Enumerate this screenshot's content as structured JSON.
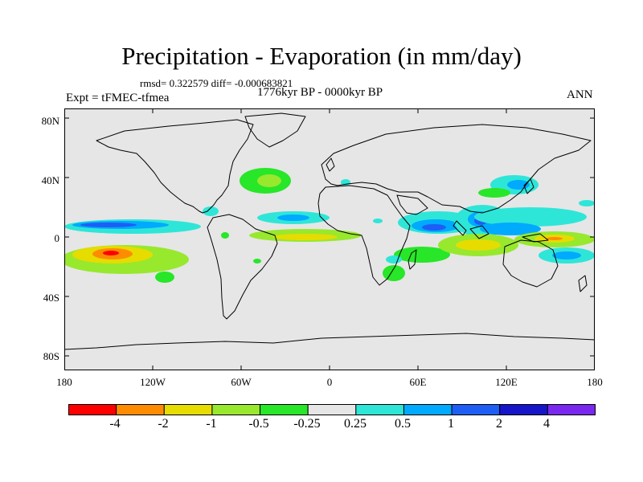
{
  "figure": {
    "title": "Precipitation - Evaporation (in mm/day)",
    "stats": "rmsd= 0.322579 diff= -0.000683821",
    "period": "1776kyr BP - 0000kyr BP",
    "experiment": "Expt = tFMEC-tfmea",
    "season": "ANN"
  },
  "map_axes": {
    "lat_labels": [
      "80N",
      "40N",
      "0",
      "40S",
      "80S"
    ],
    "lon_labels": [
      "180",
      "120W",
      "60W",
      "0",
      "60E",
      "120E",
      "180"
    ]
  },
  "colorbar": {
    "labels": [
      "-4",
      "-2",
      "-1",
      "-0.5",
      "-0.25",
      "0.25",
      "0.5",
      "1",
      "2",
      "4"
    ],
    "colors": [
      "#ff0000",
      "#ff8c00",
      "#e6dc00",
      "#98e82e",
      "#28e628",
      "#e6e6e6",
      "#2ee6d8",
      "#00aaff",
      "#1e5ef5",
      "#1616c8",
      "#7a28f0"
    ]
  }
}
